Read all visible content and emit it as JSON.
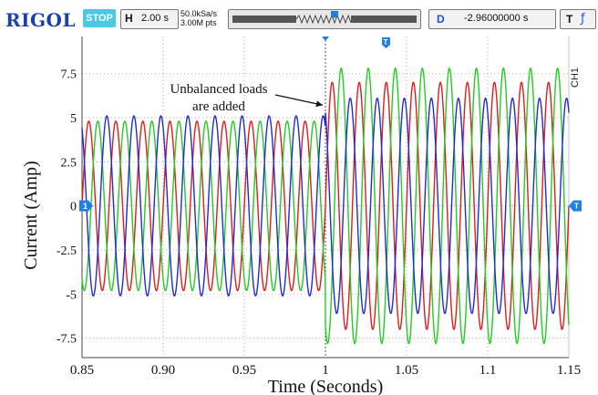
{
  "scope_ui": {
    "brand": "RIGOL",
    "run_state": "STOP",
    "horizontal_key": "H",
    "horizontal_scale": "2.00 s",
    "sample_rate": "50.0kSa/s",
    "memory_depth": "3.00M pts",
    "delay_key": "D",
    "delay_value": "-2.96000000 s",
    "trigger_key": "T",
    "trigger_edge": "ƒ",
    "channel_tag": "CH1",
    "channel_marker": "1",
    "trigger_marker": "T"
  },
  "colors": {
    "phase_a": "#e21b1b",
    "phase_b": "#22cc22",
    "phase_c": "#1f2bd6",
    "grid": "#7a7a7a",
    "marker": "#1f7fe6"
  },
  "chart_data": {
    "type": "line",
    "title": "",
    "xlabel": "Time (Seconds)",
    "ylabel": "Current (Amp)",
    "xlim": [
      0.85,
      1.15
    ],
    "ylim": [
      -8.6,
      9.6
    ],
    "x_ticks": [
      0.85,
      0.9,
      0.95,
      1,
      1.05,
      1.1,
      1.15
    ],
    "x_tick_labels": [
      "0.85",
      "0.90",
      "0.95",
      "1",
      "1.05",
      "1.1",
      "1.15"
    ],
    "y_ticks": [
      7.5,
      5,
      2.5,
      0,
      -2.5,
      -5,
      -7.5
    ],
    "y_tick_labels": [
      "7.5",
      "5",
      "2.5",
      "0",
      "-2.5",
      "-5",
      "-7.5"
    ],
    "grid": true,
    "legend": "none",
    "frequency_hz": 60,
    "event_time": 1.0,
    "annotation": {
      "text_lines": [
        "Unbalanced loads",
        "are added"
      ],
      "arrow_to": [
        1.0,
        5.4
      ]
    },
    "series": [
      {
        "color": "#e21b1b",
        "phase_deg": 0,
        "amplitude_before": 4.8,
        "amplitude_after": 7.0
      },
      {
        "color": "#22cc22",
        "phase_deg": -120,
        "amplitude_before": 4.8,
        "amplitude_after": 7.8
      },
      {
        "color": "#1f2bd6",
        "phase_deg": 120,
        "amplitude_before": 5.1,
        "amplitude_after": 6.1
      }
    ]
  }
}
